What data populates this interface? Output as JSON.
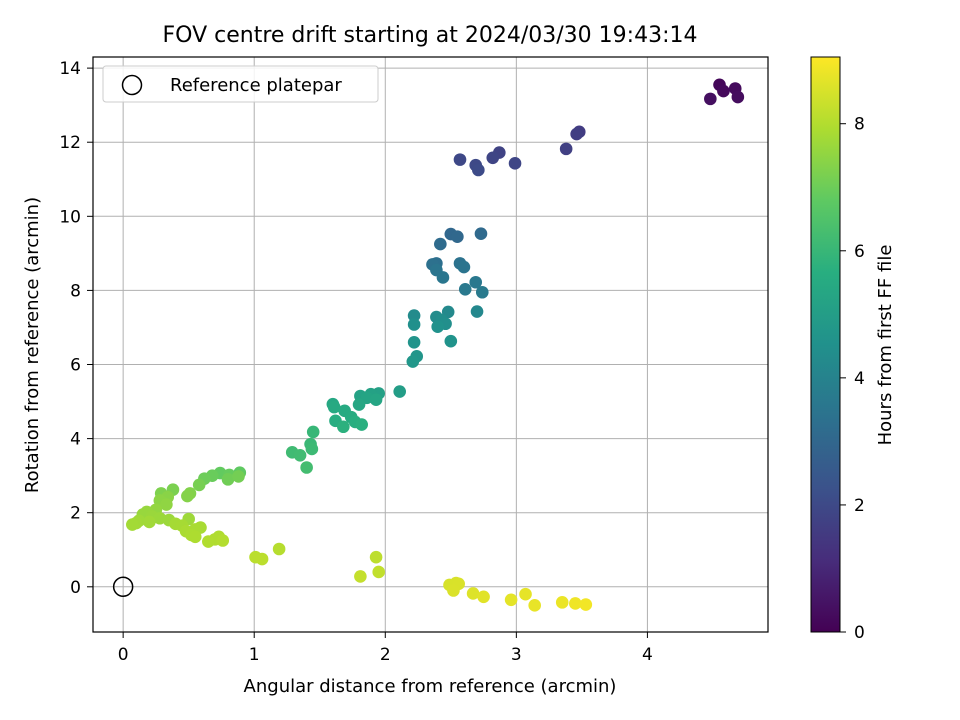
{
  "chart_data": {
    "type": "scatter",
    "title": "FOV centre drift starting at 2024/03/30 19:43:14",
    "xlabel": "Angular distance from reference (arcmin)",
    "ylabel": "Rotation from reference (arcmin)",
    "xlim": [
      -0.23,
      4.92
    ],
    "ylim": [
      -1.22,
      14.3
    ],
    "x_ticks": [
      0,
      1,
      2,
      3,
      4
    ],
    "y_ticks": [
      0,
      2,
      4,
      6,
      8,
      10,
      12,
      14
    ],
    "grid": true,
    "legend": {
      "position": "top-left",
      "entries": [
        "Reference platepar"
      ]
    },
    "reference_point": {
      "x": 0,
      "y": 0,
      "marker": "open-circle",
      "label": "Reference platepar"
    },
    "colorbar": {
      "label": "Hours from first FF file",
      "colormap": "viridis",
      "range": [
        0,
        9.05
      ],
      "ticks": [
        0,
        2,
        4,
        6,
        8
      ]
    },
    "points": [
      {
        "x": 4.55,
        "y": 13.55,
        "h": 0.15
      },
      {
        "x": 4.58,
        "y": 13.38,
        "h": 0.2
      },
      {
        "x": 4.67,
        "y": 13.45,
        "h": 0.25
      },
      {
        "x": 4.69,
        "y": 13.22,
        "h": 0.3
      },
      {
        "x": 4.48,
        "y": 13.17,
        "h": 0.35
      },
      {
        "x": 3.48,
        "y": 12.28,
        "h": 1.6
      },
      {
        "x": 3.46,
        "y": 12.22,
        "h": 1.65
      },
      {
        "x": 3.38,
        "y": 11.82,
        "h": 1.7
      },
      {
        "x": 2.87,
        "y": 11.72,
        "h": 1.8
      },
      {
        "x": 2.82,
        "y": 11.58,
        "h": 1.85
      },
      {
        "x": 2.99,
        "y": 11.43,
        "h": 1.9
      },
      {
        "x": 2.57,
        "y": 11.53,
        "h": 1.95
      },
      {
        "x": 2.69,
        "y": 11.38,
        "h": 2.0
      },
      {
        "x": 2.71,
        "y": 11.25,
        "h": 2.05
      },
      {
        "x": 2.5,
        "y": 9.52,
        "h": 3.0
      },
      {
        "x": 2.55,
        "y": 9.45,
        "h": 3.05
      },
      {
        "x": 2.73,
        "y": 9.53,
        "h": 3.1
      },
      {
        "x": 2.42,
        "y": 9.25,
        "h": 3.15
      },
      {
        "x": 2.39,
        "y": 8.73,
        "h": 3.3
      },
      {
        "x": 2.36,
        "y": 8.7,
        "h": 3.35
      },
      {
        "x": 2.57,
        "y": 8.73,
        "h": 3.4
      },
      {
        "x": 2.6,
        "y": 8.63,
        "h": 3.45
      },
      {
        "x": 2.39,
        "y": 8.55,
        "h": 3.5
      },
      {
        "x": 2.44,
        "y": 8.35,
        "h": 3.55
      },
      {
        "x": 2.69,
        "y": 8.22,
        "h": 3.6
      },
      {
        "x": 2.61,
        "y": 8.03,
        "h": 3.65
      },
      {
        "x": 2.74,
        "y": 7.95,
        "h": 3.7
      },
      {
        "x": 2.7,
        "y": 7.43,
        "h": 4.2
      },
      {
        "x": 2.48,
        "y": 7.42,
        "h": 4.25
      },
      {
        "x": 2.22,
        "y": 7.32,
        "h": 4.3
      },
      {
        "x": 2.39,
        "y": 7.28,
        "h": 4.35
      },
      {
        "x": 2.43,
        "y": 7.2,
        "h": 4.4
      },
      {
        "x": 2.46,
        "y": 7.1,
        "h": 4.45
      },
      {
        "x": 2.22,
        "y": 7.08,
        "h": 4.5
      },
      {
        "x": 2.4,
        "y": 7.02,
        "h": 4.55
      },
      {
        "x": 2.5,
        "y": 6.63,
        "h": 4.6
      },
      {
        "x": 2.22,
        "y": 6.6,
        "h": 4.65
      },
      {
        "x": 2.24,
        "y": 6.22,
        "h": 4.7
      },
      {
        "x": 2.21,
        "y": 6.08,
        "h": 4.75
      },
      {
        "x": 2.11,
        "y": 5.27,
        "h": 5.0
      },
      {
        "x": 1.95,
        "y": 5.22,
        "h": 5.1
      },
      {
        "x": 1.89,
        "y": 5.2,
        "h": 5.15
      },
      {
        "x": 1.81,
        "y": 5.15,
        "h": 5.2
      },
      {
        "x": 1.86,
        "y": 5.1,
        "h": 5.25
      },
      {
        "x": 1.93,
        "y": 5.05,
        "h": 5.3
      },
      {
        "x": 1.8,
        "y": 4.92,
        "h": 5.35
      },
      {
        "x": 1.6,
        "y": 4.93,
        "h": 5.4
      },
      {
        "x": 1.61,
        "y": 4.85,
        "h": 5.45
      },
      {
        "x": 1.69,
        "y": 4.75,
        "h": 5.5
      },
      {
        "x": 1.74,
        "y": 4.58,
        "h": 5.55
      },
      {
        "x": 1.62,
        "y": 4.48,
        "h": 5.6
      },
      {
        "x": 1.77,
        "y": 4.45,
        "h": 5.65
      },
      {
        "x": 1.82,
        "y": 4.38,
        "h": 5.7
      },
      {
        "x": 1.68,
        "y": 4.32,
        "h": 5.75
      },
      {
        "x": 1.45,
        "y": 4.18,
        "h": 6.0
      },
      {
        "x": 1.43,
        "y": 3.85,
        "h": 6.05
      },
      {
        "x": 1.44,
        "y": 3.72,
        "h": 6.1
      },
      {
        "x": 1.29,
        "y": 3.63,
        "h": 6.15
      },
      {
        "x": 1.35,
        "y": 3.55,
        "h": 6.2
      },
      {
        "x": 1.4,
        "y": 3.22,
        "h": 6.25
      },
      {
        "x": 0.89,
        "y": 3.08,
        "h": 6.8
      },
      {
        "x": 0.74,
        "y": 3.07,
        "h": 6.85
      },
      {
        "x": 0.81,
        "y": 3.02,
        "h": 6.9
      },
      {
        "x": 0.68,
        "y": 3.0,
        "h": 6.95
      },
      {
        "x": 0.62,
        "y": 2.92,
        "h": 7.0
      },
      {
        "x": 0.8,
        "y": 2.9,
        "h": 7.05
      },
      {
        "x": 0.88,
        "y": 2.98,
        "h": 7.1
      },
      {
        "x": 0.58,
        "y": 2.75,
        "h": 7.15
      },
      {
        "x": 0.38,
        "y": 2.62,
        "h": 7.2
      },
      {
        "x": 0.29,
        "y": 2.52,
        "h": 7.25
      },
      {
        "x": 0.51,
        "y": 2.52,
        "h": 7.3
      },
      {
        "x": 0.49,
        "y": 2.45,
        "h": 7.35
      },
      {
        "x": 0.34,
        "y": 2.42,
        "h": 7.4
      },
      {
        "x": 0.28,
        "y": 2.33,
        "h": 7.45
      },
      {
        "x": 0.33,
        "y": 2.22,
        "h": 7.5
      },
      {
        "x": 0.25,
        "y": 2.08,
        "h": 7.55
      },
      {
        "x": 0.18,
        "y": 2.02,
        "h": 7.6
      },
      {
        "x": 0.15,
        "y": 1.95,
        "h": 7.62
      },
      {
        "x": 0.22,
        "y": 1.9,
        "h": 7.64
      },
      {
        "x": 0.28,
        "y": 1.85,
        "h": 7.66
      },
      {
        "x": 0.35,
        "y": 1.8,
        "h": 7.68
      },
      {
        "x": 0.5,
        "y": 1.83,
        "h": 7.7
      },
      {
        "x": 0.12,
        "y": 1.78,
        "h": 7.72
      },
      {
        "x": 0.2,
        "y": 1.75,
        "h": 7.74
      },
      {
        "x": 0.1,
        "y": 1.72,
        "h": 7.76
      },
      {
        "x": 0.07,
        "y": 1.68,
        "h": 7.78
      },
      {
        "x": 0.4,
        "y": 1.7,
        "h": 7.8
      },
      {
        "x": 0.45,
        "y": 1.65,
        "h": 7.82
      },
      {
        "x": 0.59,
        "y": 1.6,
        "h": 7.84
      },
      {
        "x": 0.55,
        "y": 1.55,
        "h": 7.86
      },
      {
        "x": 0.48,
        "y": 1.5,
        "h": 7.88
      },
      {
        "x": 0.52,
        "y": 1.4,
        "h": 7.9
      },
      {
        "x": 0.55,
        "y": 1.35,
        "h": 7.92
      },
      {
        "x": 0.73,
        "y": 1.35,
        "h": 7.94
      },
      {
        "x": 0.7,
        "y": 1.28,
        "h": 7.96
      },
      {
        "x": 0.65,
        "y": 1.22,
        "h": 7.98
      },
      {
        "x": 0.76,
        "y": 1.25,
        "h": 8.0
      },
      {
        "x": 1.19,
        "y": 1.02,
        "h": 8.05
      },
      {
        "x": 1.01,
        "y": 0.8,
        "h": 8.1
      },
      {
        "x": 1.06,
        "y": 0.75,
        "h": 8.12
      },
      {
        "x": 1.93,
        "y": 0.8,
        "h": 8.15
      },
      {
        "x": 1.95,
        "y": 0.4,
        "h": 8.2
      },
      {
        "x": 1.81,
        "y": 0.28,
        "h": 8.25
      },
      {
        "x": 2.49,
        "y": 0.05,
        "h": 8.5
      },
      {
        "x": 2.54,
        "y": 0.1,
        "h": 8.52
      },
      {
        "x": 2.56,
        "y": 0.08,
        "h": 8.54
      },
      {
        "x": 2.52,
        "y": -0.1,
        "h": 8.56
      },
      {
        "x": 2.67,
        "y": -0.18,
        "h": 8.6
      },
      {
        "x": 2.75,
        "y": -0.27,
        "h": 8.65
      },
      {
        "x": 2.96,
        "y": -0.35,
        "h": 8.7
      },
      {
        "x": 3.07,
        "y": -0.2,
        "h": 8.72
      },
      {
        "x": 3.14,
        "y": -0.5,
        "h": 8.75
      },
      {
        "x": 3.35,
        "y": -0.42,
        "h": 8.8
      },
      {
        "x": 3.45,
        "y": -0.45,
        "h": 8.85
      },
      {
        "x": 3.53,
        "y": -0.48,
        "h": 8.9
      }
    ]
  }
}
